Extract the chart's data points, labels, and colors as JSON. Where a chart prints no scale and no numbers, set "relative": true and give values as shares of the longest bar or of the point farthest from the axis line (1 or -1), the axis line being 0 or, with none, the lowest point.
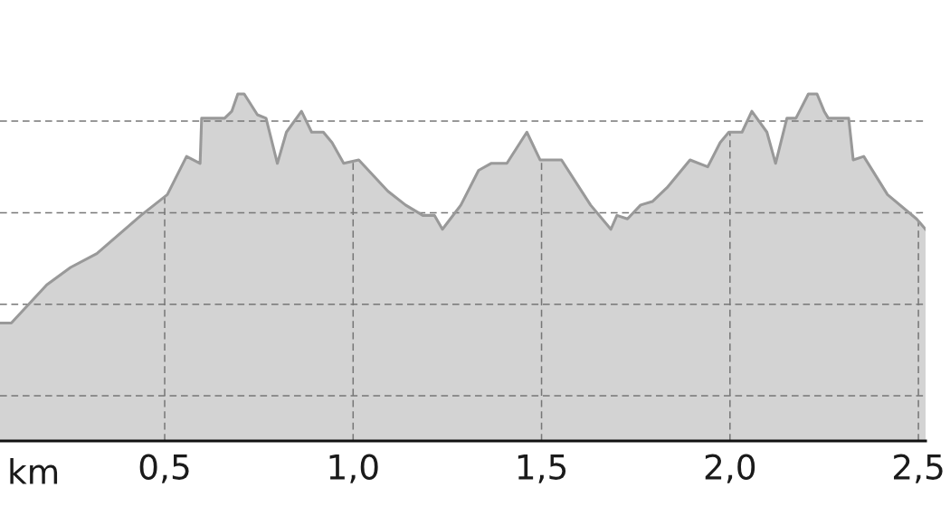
{
  "chart_data": {
    "type": "area",
    "relative": true,
    "xlabel": "km",
    "x": [
      0.063,
      0.093,
      0.187,
      0.25,
      0.32,
      0.437,
      0.507,
      0.558,
      0.594,
      0.598,
      0.659,
      0.678,
      0.694,
      0.711,
      0.746,
      0.769,
      0.799,
      0.823,
      0.863,
      0.89,
      0.921,
      0.944,
      0.975,
      1.015,
      1.092,
      1.139,
      1.185,
      1.216,
      1.237,
      1.286,
      1.333,
      1.366,
      1.408,
      1.461,
      1.496,
      1.553,
      1.63,
      1.684,
      1.7,
      1.728,
      1.763,
      1.794,
      1.833,
      1.894,
      1.941,
      1.974,
      1.997,
      2.032,
      2.058,
      2.098,
      2.121,
      2.151,
      2.175,
      2.208,
      2.231,
      2.25,
      2.261,
      2.315,
      2.327,
      2.355,
      2.418,
      2.495,
      2.519
    ],
    "values": [
      0.34,
      0.34,
      0.45,
      0.5,
      0.54,
      0.65,
      0.71,
      0.82,
      0.8,
      0.93,
      0.93,
      0.95,
      1.0,
      1.0,
      0.94,
      0.93,
      0.8,
      0.89,
      0.95,
      0.89,
      0.89,
      0.86,
      0.8,
      0.81,
      0.72,
      0.68,
      0.65,
      0.65,
      0.61,
      0.68,
      0.78,
      0.8,
      0.8,
      0.89,
      0.81,
      0.81,
      0.68,
      0.61,
      0.65,
      0.64,
      0.68,
      0.69,
      0.73,
      0.81,
      0.79,
      0.86,
      0.89,
      0.89,
      0.95,
      0.89,
      0.8,
      0.93,
      0.93,
      1.0,
      1.0,
      0.95,
      0.93,
      0.93,
      0.81,
      0.82,
      0.71,
      0.64,
      0.61
    ],
    "color": "#999999",
    "xlim": [
      0.063,
      2.519
    ],
    "xticks": [
      {
        "value": 0.5,
        "label": "0,5"
      },
      {
        "value": 1.0,
        "label": "1,0"
      },
      {
        "value": 1.5,
        "label": "1,5"
      },
      {
        "value": 2.0,
        "label": "2,0"
      },
      {
        "value": 2.5,
        "label": "2,5"
      }
    ],
    "grid": true,
    "tick_labels": "x"
  }
}
